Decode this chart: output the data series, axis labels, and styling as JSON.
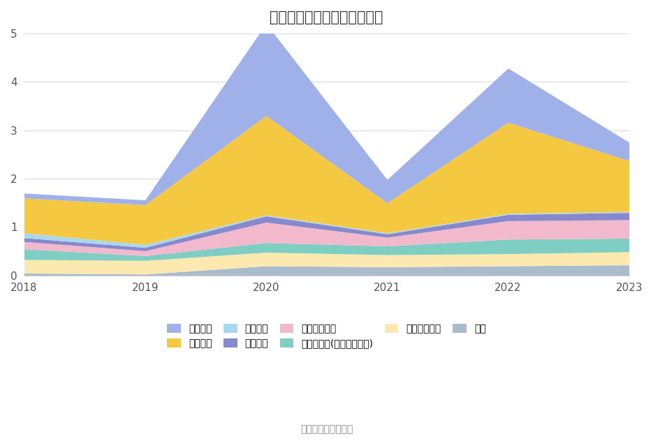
{
  "title": "历年主要负债堆积图（亿元）",
  "source_text": "数据来源：恒生聚源",
  "years": [
    2018,
    2019,
    2020,
    2021,
    2022,
    2023
  ],
  "series": [
    {
      "name": "其它",
      "color": "#aabccc",
      "values": [
        0.05,
        0.03,
        0.2,
        0.18,
        0.2,
        0.22
      ]
    },
    {
      "name": "长期递延收益",
      "color": "#fce9b0",
      "values": [
        0.28,
        0.28,
        0.28,
        0.25,
        0.25,
        0.27
      ]
    },
    {
      "name": "其他应付款(含利息和股利)",
      "color": "#7ecec4",
      "values": [
        0.22,
        0.1,
        0.2,
        0.18,
        0.3,
        0.28
      ]
    },
    {
      "name": "应付职工薪酬",
      "color": "#f2b8cc",
      "values": [
        0.15,
        0.1,
        0.42,
        0.18,
        0.38,
        0.38
      ]
    },
    {
      "name": "合同负债",
      "color": "#8888cc",
      "values": [
        0.08,
        0.07,
        0.13,
        0.07,
        0.13,
        0.15
      ]
    },
    {
      "name": "预收款项",
      "color": "#a8d8f0",
      "values": [
        0.1,
        0.06,
        0.02,
        0.02,
        0.02,
        0.02
      ]
    },
    {
      "name": "应付账款",
      "color": "#f5c842",
      "values": [
        0.72,
        0.82,
        2.05,
        0.62,
        1.88,
        1.05
      ]
    },
    {
      "name": "短期借款",
      "color": "#a0b0e8",
      "values": [
        0.1,
        0.1,
        1.9,
        0.48,
        1.12,
        0.38
      ]
    }
  ],
  "ylim": [
    0,
    5
  ],
  "yticks": [
    0,
    1,
    2,
    3,
    4,
    5
  ],
  "background_color": "#ffffff",
  "grid_color": "#d8dce8",
  "title_fontsize": 15,
  "tick_fontsize": 11,
  "legend_fontsize": 10,
  "legend_order": [
    7,
    6,
    5,
    4,
    3,
    2,
    1,
    0
  ],
  "legend_ncol_row1": 5,
  "legend_ncol_row2": 4
}
